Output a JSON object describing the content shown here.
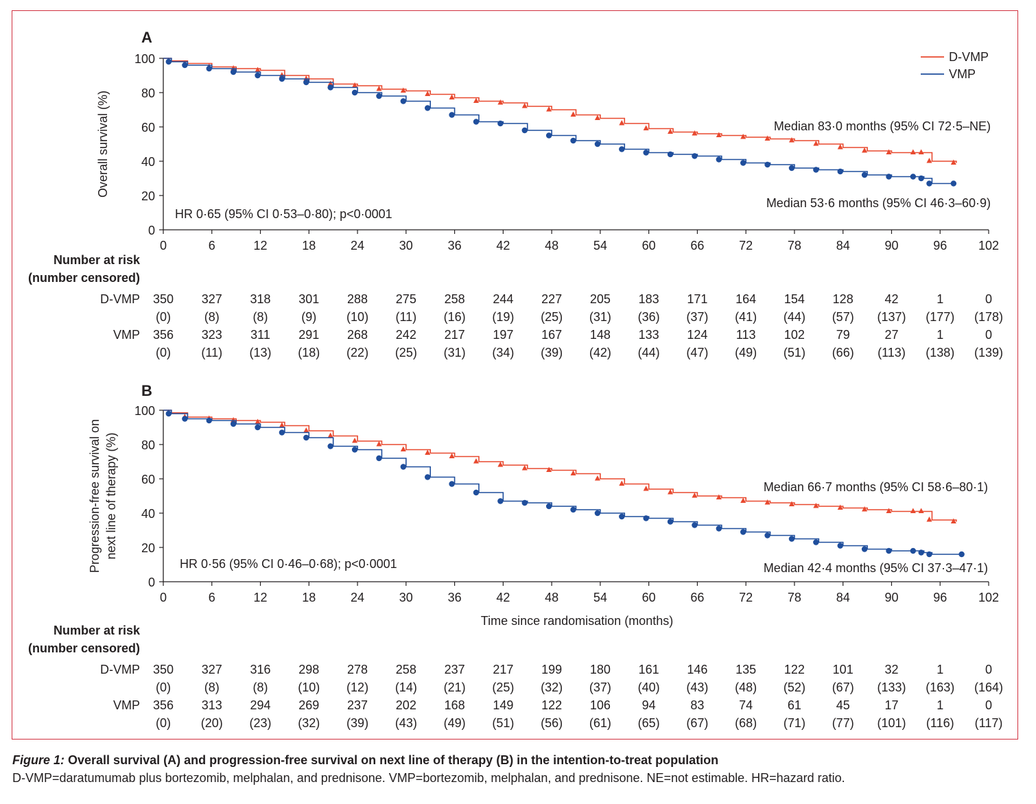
{
  "chart_data": [
    {
      "type": "line",
      "panel_label": "A",
      "ylabel": "Overall survival (%)",
      "xlabel": "",
      "xlim": [
        0,
        102
      ],
      "ylim": [
        0,
        100
      ],
      "xticks": [
        0,
        6,
        12,
        18,
        24,
        30,
        36,
        42,
        48,
        54,
        60,
        66,
        72,
        78,
        84,
        90,
        96,
        102
      ],
      "yticks": [
        0,
        20,
        40,
        60,
        80,
        100
      ],
      "legend": {
        "position": "top-right",
        "entries": [
          "D-VMP",
          "VMP"
        ]
      },
      "annotations": {
        "hr": "HR 0·65 (95% CI 0·53–0·80); p<0·0001",
        "median_dvmp": "Median 83·0 months (95% CI 72·5–NE)",
        "median_vmp": "Median 53·6 months (95% CI 46·3–60·9)"
      },
      "series": [
        {
          "name": "D-VMP",
          "color": "#e8492f",
          "marker": "triangle",
          "x": [
            0,
            1,
            3,
            6,
            9,
            12,
            15,
            18,
            21,
            24,
            27,
            30,
            33,
            36,
            39,
            42,
            45,
            48,
            51,
            54,
            57,
            60,
            63,
            66,
            69,
            72,
            75,
            78,
            81,
            84,
            87,
            90,
            93,
            94,
            95,
            98
          ],
          "y": [
            100,
            98.5,
            97,
            95,
            94,
            93,
            90,
            88,
            85,
            84,
            82,
            81,
            79,
            77,
            75,
            74,
            72,
            70,
            67,
            65,
            62,
            59,
            57,
            56,
            55,
            54,
            53,
            52,
            50,
            48,
            46,
            45,
            45,
            45,
            40,
            39
          ]
        },
        {
          "name": "VMP",
          "color": "#1f4e9c",
          "marker": "circle",
          "x": [
            0,
            1,
            3,
            6,
            9,
            12,
            15,
            18,
            21,
            24,
            27,
            30,
            33,
            36,
            39,
            42,
            45,
            48,
            51,
            54,
            57,
            60,
            63,
            66,
            69,
            72,
            75,
            78,
            81,
            84,
            87,
            90,
            93,
            94,
            95,
            98
          ],
          "y": [
            100,
            98,
            96,
            94,
            92,
            90,
            88,
            86,
            83,
            80,
            78,
            75,
            71,
            67,
            63,
            62,
            58,
            55,
            52,
            50,
            47,
            45,
            44,
            43,
            41,
            39,
            38,
            36,
            35,
            34,
            32,
            31,
            31,
            30,
            27,
            27
          ]
        }
      ],
      "risk_table": {
        "header": [
          "Number at risk",
          "(number censored)"
        ],
        "rows": [
          {
            "label": "D-VMP",
            "at_risk": [
              "350",
              "327",
              "318",
              "301",
              "288",
              "275",
              "258",
              "244",
              "227",
              "205",
              "183",
              "171",
              "164",
              "154",
              "128",
              "42",
              "1",
              "0"
            ],
            "censored": [
              "(0)",
              "(8)",
              "(8)",
              "(9)",
              "(10)",
              "(11)",
              "(16)",
              "(19)",
              "(25)",
              "(31)",
              "(36)",
              "(37)",
              "(41)",
              "(44)",
              "(57)",
              "(137)",
              "(177)",
              "(178)"
            ]
          },
          {
            "label": "VMP",
            "at_risk": [
              "356",
              "323",
              "311",
              "291",
              "268",
              "242",
              "217",
              "197",
              "167",
              "148",
              "133",
              "124",
              "113",
              "102",
              "79",
              "27",
              "1",
              "0"
            ],
            "censored": [
              "(0)",
              "(11)",
              "(13)",
              "(18)",
              "(22)",
              "(25)",
              "(31)",
              "(34)",
              "(39)",
              "(42)",
              "(44)",
              "(47)",
              "(49)",
              "(51)",
              "(66)",
              "(113)",
              "(138)",
              "(139)"
            ]
          }
        ]
      }
    },
    {
      "type": "line",
      "panel_label": "B",
      "ylabel": [
        "Progression-free survival on",
        "next line of therapy (%)"
      ],
      "xlabel": "Time since randomisation (months)",
      "xlim": [
        0,
        102
      ],
      "ylim": [
        0,
        100
      ],
      "xticks": [
        0,
        6,
        12,
        18,
        24,
        30,
        36,
        42,
        48,
        54,
        60,
        66,
        72,
        78,
        84,
        90,
        96,
        102
      ],
      "yticks": [
        0,
        20,
        40,
        60,
        80,
        100
      ],
      "annotations": {
        "hr": "HR 0·56 (95% CI 0·46–0·68); p<0·0001",
        "median_dvmp": "Median 66·7 months (95% CI 58·6–80·1)",
        "median_vmp": "Median 42·4 months (95% CI 37·3–47·1)"
      },
      "series": [
        {
          "name": "D-VMP",
          "color": "#e8492f",
          "marker": "triangle",
          "x": [
            0,
            1,
            3,
            6,
            9,
            12,
            15,
            18,
            21,
            24,
            27,
            30,
            33,
            36,
            39,
            42,
            45,
            48,
            51,
            54,
            57,
            60,
            63,
            66,
            69,
            72,
            75,
            78,
            81,
            84,
            87,
            90,
            93,
            94,
            95,
            98
          ],
          "y": [
            100,
            98.5,
            96,
            95,
            94,
            93,
            91,
            88,
            85,
            82,
            80,
            77,
            75,
            73,
            70,
            68,
            66,
            65,
            63,
            60,
            57,
            54,
            52,
            50,
            49,
            47,
            46,
            45,
            44,
            43,
            42,
            41,
            41,
            41,
            36,
            35
          ]
        },
        {
          "name": "VMP",
          "color": "#1f4e9c",
          "marker": "circle",
          "x": [
            0,
            1,
            3,
            6,
            9,
            12,
            15,
            18,
            21,
            24,
            27,
            30,
            33,
            36,
            39,
            42,
            45,
            48,
            51,
            54,
            57,
            60,
            63,
            66,
            69,
            72,
            75,
            78,
            81,
            84,
            87,
            90,
            93,
            94,
            95,
            99
          ],
          "y": [
            100,
            98,
            95,
            94,
            92,
            90,
            87,
            84,
            79,
            77,
            72,
            67,
            61,
            57,
            52,
            47,
            46,
            44,
            42,
            40,
            38,
            37,
            35,
            33,
            31,
            29,
            27,
            25,
            23,
            21,
            19,
            18,
            18,
            17,
            16,
            16
          ]
        }
      ],
      "risk_table": {
        "header": [
          "Number at risk",
          "(number censored)"
        ],
        "rows": [
          {
            "label": "D-VMP",
            "at_risk": [
              "350",
              "327",
              "316",
              "298",
              "278",
              "258",
              "237",
              "217",
              "199",
              "180",
              "161",
              "146",
              "135",
              "122",
              "101",
              "32",
              "1",
              "0"
            ],
            "censored": [
              "(0)",
              "(8)",
              "(8)",
              "(10)",
              "(12)",
              "(14)",
              "(21)",
              "(25)",
              "(32)",
              "(37)",
              "(40)",
              "(43)",
              "(48)",
              "(52)",
              "(67)",
              "(133)",
              "(163)",
              "(164)"
            ]
          },
          {
            "label": "VMP",
            "at_risk": [
              "356",
              "313",
              "294",
              "269",
              "237",
              "202",
              "168",
              "149",
              "122",
              "106",
              "94",
              "83",
              "74",
              "61",
              "45",
              "17",
              "1",
              "0"
            ],
            "censored": [
              "(0)",
              "(20)",
              "(23)",
              "(32)",
              "(39)",
              "(43)",
              "(49)",
              "(51)",
              "(56)",
              "(61)",
              "(65)",
              "(67)",
              "(68)",
              "(71)",
              "(77)",
              "(101)",
              "(116)",
              "(117)"
            ]
          }
        ]
      }
    }
  ],
  "caption": {
    "label": "Figure 1:",
    "title": " Overall survival (A) and progression-free survival on next line of therapy (B) in the intention-to-treat population",
    "body": "D-VMP=daratumumab plus bortezomib, melphalan, and prednisone. VMP=bortezomib, melphalan, and prednisone. NE=not estimable. HR=hazard ratio."
  }
}
